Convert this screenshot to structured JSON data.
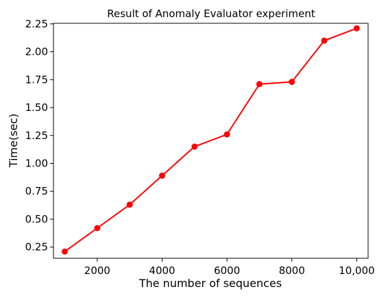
{
  "chart_data": {
    "type": "line",
    "title": "Result of Anomaly Evaluator experiment",
    "xlabel": "The number of sequences",
    "ylabel": "Time(sec)",
    "xlim": [
      650,
      10350
    ],
    "ylim": [
      0.15,
      2.255
    ],
    "x_ticks": [
      2000,
      4000,
      6000,
      8000,
      10000
    ],
    "x_tick_labels": [
      "2000",
      "4000",
      "6000",
      "8000",
      "10,000"
    ],
    "y_ticks": [
      0.25,
      0.5,
      0.75,
      1.0,
      1.25,
      1.5,
      1.75,
      2.0,
      2.25
    ],
    "y_tick_labels": [
      "0.25",
      "0.50",
      "0.75",
      "1.00",
      "1.25",
      "1.50",
      "1.75",
      "2.00",
      "2.25"
    ],
    "grid": false,
    "series": [
      {
        "color": "#ff0000",
        "x": [
          1000,
          2000,
          3000,
          4000,
          5000,
          6000,
          7000,
          8000,
          9000,
          10000
        ],
        "y": [
          0.21,
          0.42,
          0.63,
          0.89,
          1.15,
          1.26,
          1.71,
          1.73,
          2.1,
          2.21
        ]
      }
    ]
  }
}
